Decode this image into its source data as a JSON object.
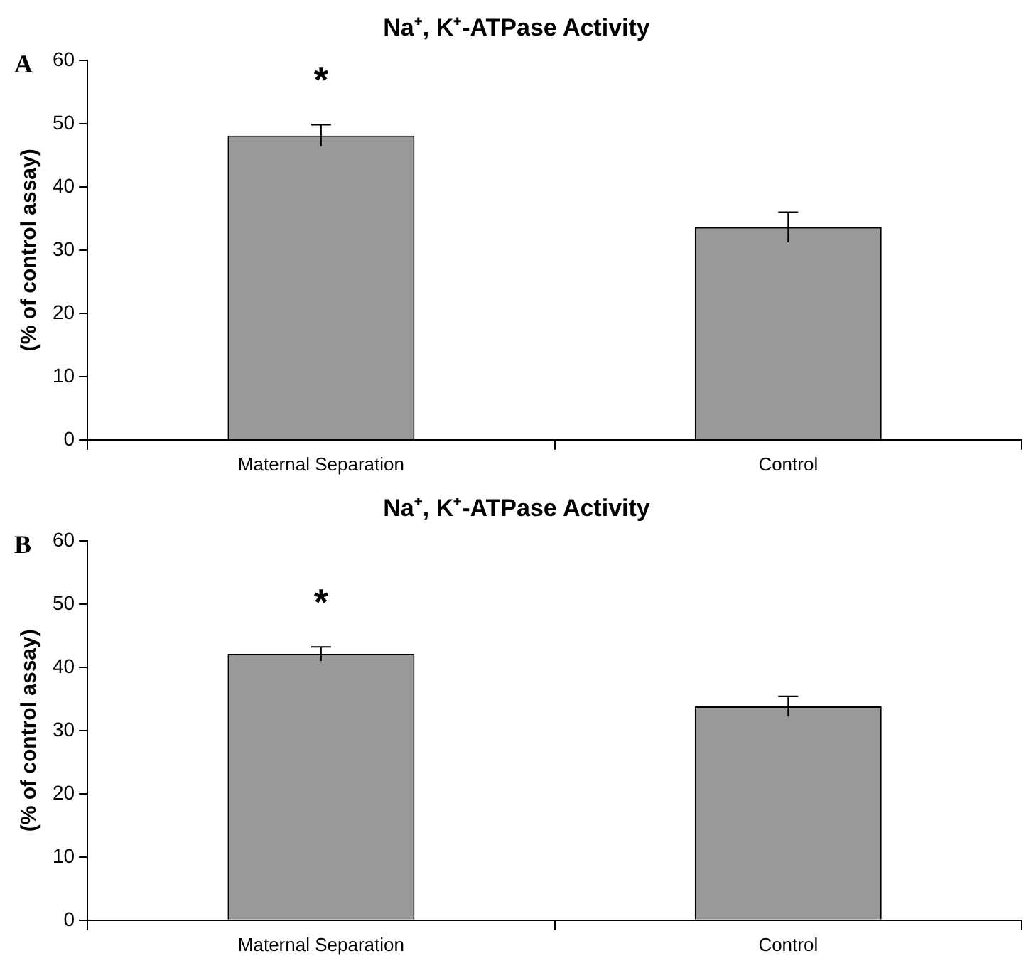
{
  "chart_data": [
    {
      "type": "bar",
      "title": "Na⁺, K⁺-ATPase Activity",
      "ylabel": "(% of control assay)",
      "categories": [
        "Maternal Separation",
        "Control"
      ],
      "values": [
        48.1,
        33.6
      ],
      "errors": [
        1.7,
        2.4
      ],
      "color": "#999999",
      "ylim": [
        0,
        60
      ],
      "yticks": [
        0,
        10,
        20,
        30,
        40,
        50,
        60
      ],
      "grid": false,
      "legend": false,
      "annotations": [
        "A",
        "*"
      ]
    },
    {
      "type": "bar",
      "title": "Na⁺, K⁺-ATPase Activity",
      "ylabel": "(% of control assay)",
      "categories": [
        "Maternal Separation",
        "Control"
      ],
      "values": [
        42.1,
        33.8
      ],
      "errors": [
        1.1,
        1.6
      ],
      "color": "#999999",
      "ylim": [
        0,
        60
      ],
      "yticks": [
        0,
        10,
        20,
        30,
        40,
        50,
        60
      ],
      "grid": false,
      "legend": false,
      "annotations": [
        "B",
        "*"
      ]
    }
  ]
}
